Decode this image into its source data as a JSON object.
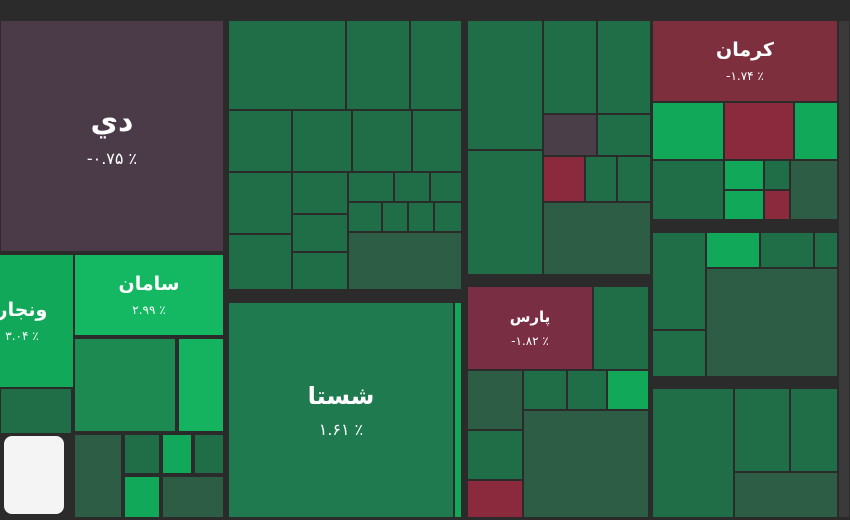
{
  "tiles": [
    {
      "symbol": "دي",
      "change": "-۰.۷۵ ٪"
    },
    {
      "symbol": "کرمان",
      "change": "-۱.۷۴ ٪"
    },
    {
      "symbol": "سامان",
      "change": "۲.۹۹ ٪"
    },
    {
      "symbol": "ونجار",
      "change": "۳.۰۴ ٪"
    },
    {
      "symbol": "شستا",
      "change": "۱.۶۱ ٪"
    },
    {
      "symbol": "پارس",
      "change": "-۱.۸۲ ٪"
    }
  ]
}
